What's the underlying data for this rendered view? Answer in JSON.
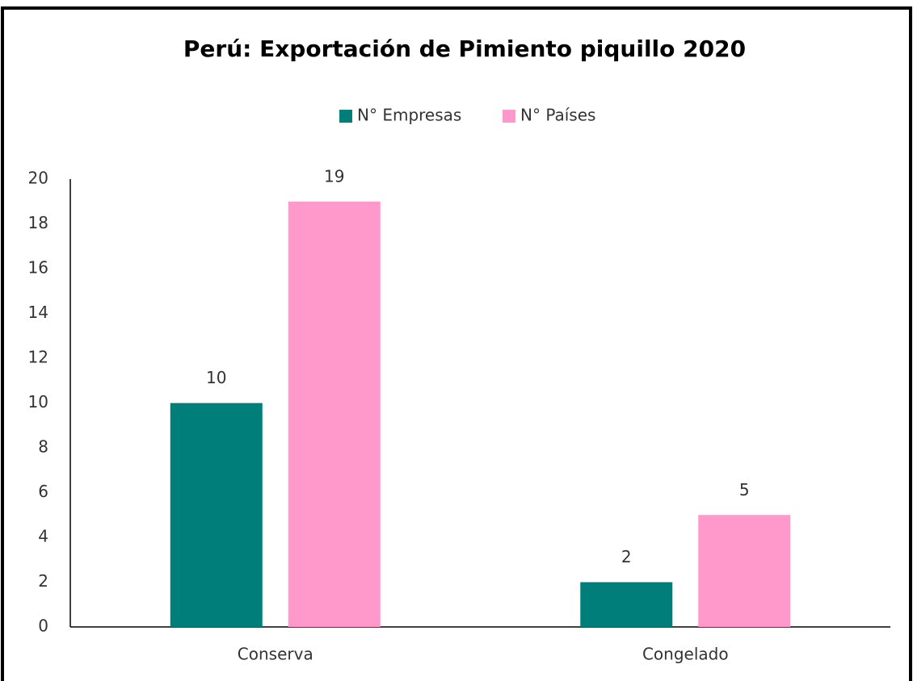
{
  "chart_data": {
    "type": "bar",
    "title": "Perú: Exportación de Pimiento piquillo 2020",
    "categories": [
      "Conserva",
      "Congelado"
    ],
    "series": [
      {
        "name": "N° Empresas",
        "color": "#007f7a",
        "values": [
          10,
          2
        ]
      },
      {
        "name": "N° Países",
        "color": "#ff99cc",
        "values": [
          19,
          5
        ]
      }
    ],
    "ylim": [
      0,
      20
    ],
    "yticks": [
      0,
      2,
      4,
      6,
      8,
      10,
      12,
      14,
      16,
      18,
      20
    ],
    "legend": "top"
  }
}
